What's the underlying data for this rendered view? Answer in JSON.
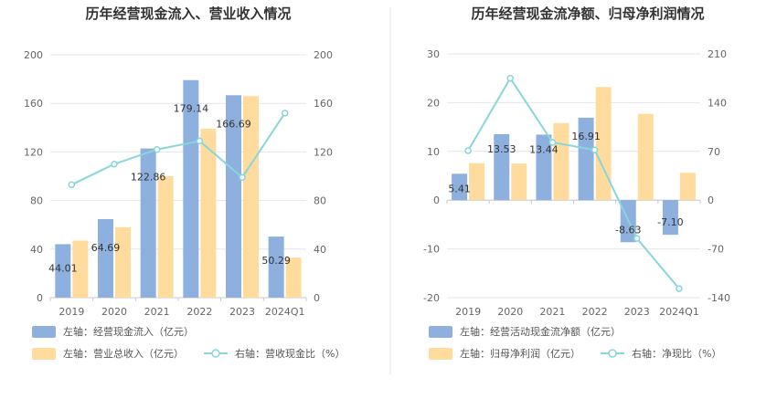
{
  "colors": {
    "bar_primary": "#8eb0de",
    "bar_secondary": "#ffdb9e",
    "line": "#88d6dc",
    "grid": "#e4e4ee",
    "axis_text": "#666666",
    "divider": "#e6e6e6"
  },
  "chart_data": [
    {
      "type": "bar",
      "title": "历年经营现金流入、营业收入情况",
      "categories": [
        "2019",
        "2020",
        "2021",
        "2022",
        "2023",
        "2024Q1"
      ],
      "yticks_left": [
        "0",
        "40",
        "80",
        "120",
        "160",
        "200"
      ],
      "yticks_right": [
        "0",
        "40",
        "80",
        "120",
        "160",
        "200"
      ],
      "ylim_left": [
        0,
        200
      ],
      "ylim_right": [
        0,
        200
      ],
      "series": [
        {
          "name": "左轴：经营现金流入（亿元）",
          "kind": "bar",
          "axis": "left",
          "values": [
            44.01,
            64.69,
            122.86,
            179.14,
            166.69,
            50.29
          ],
          "labels": [
            "44.01",
            "64.69",
            "122.86",
            "179.14",
            "166.69",
            "50.29"
          ]
        },
        {
          "name": "左轴：营业总收入（亿元）",
          "kind": "bar",
          "axis": "left",
          "values": [
            47,
            58,
            100,
            139,
            166,
            33
          ]
        },
        {
          "name": "右轴：营收现金比（%）",
          "kind": "line",
          "axis": "right",
          "values": [
            93,
            110,
            122,
            129,
            99,
            152
          ]
        }
      ]
    },
    {
      "type": "bar",
      "title": "历年经营现金流净额、归母净利润情况",
      "categories": [
        "2019",
        "2020",
        "2021",
        "2022",
        "2023",
        "2024Q1"
      ],
      "yticks_left": [
        "-20",
        "-10",
        "0",
        "10",
        "20",
        "30"
      ],
      "yticks_right": [
        "-140",
        "-70",
        "0",
        "70",
        "140",
        "210"
      ],
      "ylim_left": [
        -20,
        30
      ],
      "ylim_right": [
        -140,
        210
      ],
      "series": [
        {
          "name": "左轴：经营活动现金流净额（亿元）",
          "kind": "bar",
          "axis": "left",
          "values": [
            5.41,
            13.53,
            13.44,
            16.91,
            -8.63,
            -7.1
          ],
          "labels": [
            "5.41",
            "13.53",
            "13.44",
            "16.91",
            "-8.63",
            "-7.10"
          ]
        },
        {
          "name": "左轴：归母净利润（亿元）",
          "kind": "bar",
          "axis": "left",
          "values": [
            7.6,
            7.5,
            15.8,
            23.2,
            17.7,
            5.6
          ]
        },
        {
          "name": "右轴：净现比（%）",
          "kind": "line",
          "axis": "right",
          "values": [
            71,
            175,
            83,
            72,
            -55,
            -127
          ]
        }
      ]
    }
  ]
}
